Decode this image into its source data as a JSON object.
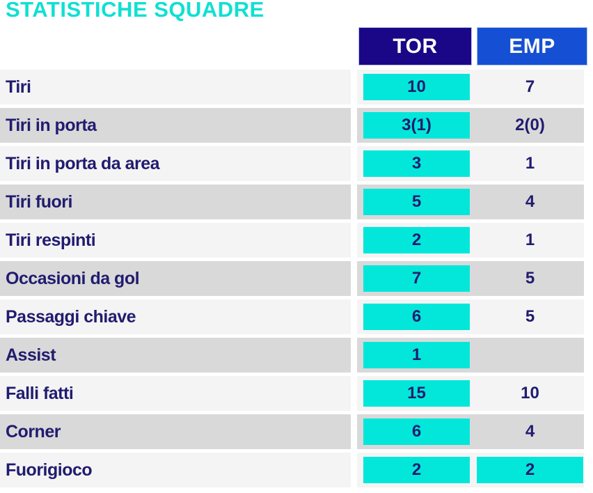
{
  "title": "STATISTICHE SQUADRE",
  "columns": [
    {
      "id": "tor",
      "label": "TOR"
    },
    {
      "id": "emp",
      "label": "EMP"
    }
  ],
  "rows": [
    {
      "label": "Tiri",
      "tor": {
        "value": "10",
        "highlight": true
      },
      "emp": {
        "value": "7",
        "highlight": false
      }
    },
    {
      "label": "Tiri in porta",
      "tor": {
        "value": "3(1)",
        "highlight": true
      },
      "emp": {
        "value": "2(0)",
        "highlight": false
      }
    },
    {
      "label": "Tiri in porta da area",
      "tor": {
        "value": "3",
        "highlight": true
      },
      "emp": {
        "value": "1",
        "highlight": false
      }
    },
    {
      "label": "Tiri fuori",
      "tor": {
        "value": "5",
        "highlight": true
      },
      "emp": {
        "value": "4",
        "highlight": false
      }
    },
    {
      "label": "Tiri respinti",
      "tor": {
        "value": "2",
        "highlight": true
      },
      "emp": {
        "value": "1",
        "highlight": false
      }
    },
    {
      "label": "Occasioni da gol",
      "tor": {
        "value": "7",
        "highlight": true
      },
      "emp": {
        "value": "5",
        "highlight": false
      }
    },
    {
      "label": "Passaggi chiave",
      "tor": {
        "value": "6",
        "highlight": true
      },
      "emp": {
        "value": "5",
        "highlight": false
      }
    },
    {
      "label": "Assist",
      "tor": {
        "value": "1",
        "highlight": true
      },
      "emp": {
        "value": "",
        "highlight": false
      }
    },
    {
      "label": "Falli fatti",
      "tor": {
        "value": "15",
        "highlight": true
      },
      "emp": {
        "value": "10",
        "highlight": false
      }
    },
    {
      "label": "Corner",
      "tor": {
        "value": "6",
        "highlight": true
      },
      "emp": {
        "value": "4",
        "highlight": false
      }
    },
    {
      "label": "Fuorigioco",
      "tor": {
        "value": "2",
        "highlight": true
      },
      "emp": {
        "value": "2",
        "highlight": true
      }
    }
  ],
  "colors": {
    "title_cyan": "#0FE0D2",
    "cell_cyan": "#03E7DA",
    "tor_header_bg": "#1A0787",
    "emp_header_bg": "#1550D4",
    "header_text": "#FAFAFA",
    "label_navy": "#211C6F",
    "row_light": "#F4F4F4",
    "row_dark": "#D9D9D9"
  }
}
